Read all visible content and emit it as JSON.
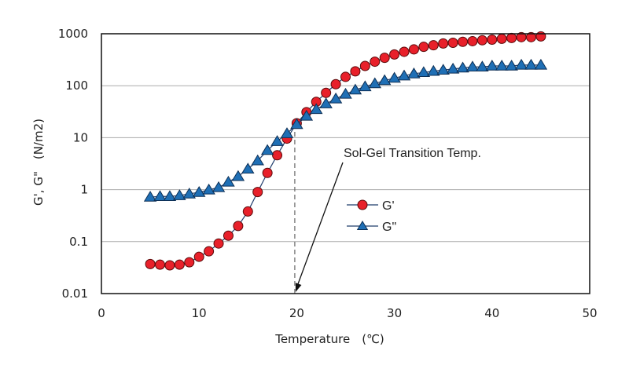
{
  "chart_data": {
    "type": "scatter",
    "title": "",
    "xlabel": "Temperature　(℃)",
    "ylabel": "G',  G\"　(N/m2)",
    "xlim": [
      0,
      50
    ],
    "ylim": [
      0.01,
      1000
    ],
    "yscale": "log",
    "x_ticks": [
      "0",
      "10",
      "20",
      "30",
      "40",
      "50"
    ],
    "y_ticks": [
      "0.01",
      "0.1",
      "1",
      "10",
      "100",
      "1000"
    ],
    "grid": "horizontal",
    "legend_position": "center-right",
    "x": [
      5,
      6,
      7,
      8,
      9,
      10,
      11,
      12,
      13,
      14,
      15,
      16,
      17,
      18,
      19,
      20,
      21,
      22,
      23,
      24,
      25,
      26,
      27,
      28,
      29,
      30,
      31,
      32,
      33,
      34,
      35,
      36,
      37,
      38,
      39,
      40,
      41,
      42,
      43,
      44,
      45
    ],
    "series": [
      {
        "name": "G'",
        "marker": "circle",
        "color": "#e8202a",
        "values": [
          0.037,
          0.036,
          0.035,
          0.036,
          0.04,
          0.051,
          0.065,
          0.092,
          0.13,
          0.2,
          0.38,
          0.9,
          2.1,
          4.6,
          9.6,
          19,
          31,
          49,
          73,
          107,
          148,
          189,
          240,
          290,
          345,
          400,
          450,
          500,
          560,
          600,
          650,
          670,
          700,
          720,
          750,
          770,
          800,
          830,
          860,
          860,
          890
        ]
      },
      {
        "name": "G\"",
        "marker": "triangle",
        "color": "#1f6fb5",
        "values": [
          0.72,
          0.74,
          0.74,
          0.77,
          0.83,
          0.89,
          0.99,
          1.1,
          1.4,
          1.8,
          2.5,
          3.6,
          5.7,
          8.5,
          12,
          18,
          26,
          35,
          45,
          56,
          69,
          83,
          96,
          110,
          126,
          140,
          155,
          170,
          180,
          190,
          200,
          210,
          220,
          230,
          230,
          240,
          240,
          240,
          250,
          250,
          250
        ]
      }
    ],
    "annotations": [
      {
        "text": "Sol-Gel Transition Temp.",
        "x": 20,
        "target_x": 19.8,
        "target_y": 0.01
      }
    ],
    "reference_line": {
      "x": 19.8,
      "from_y": 0.01,
      "to_y": 16,
      "style": "dashed"
    }
  }
}
